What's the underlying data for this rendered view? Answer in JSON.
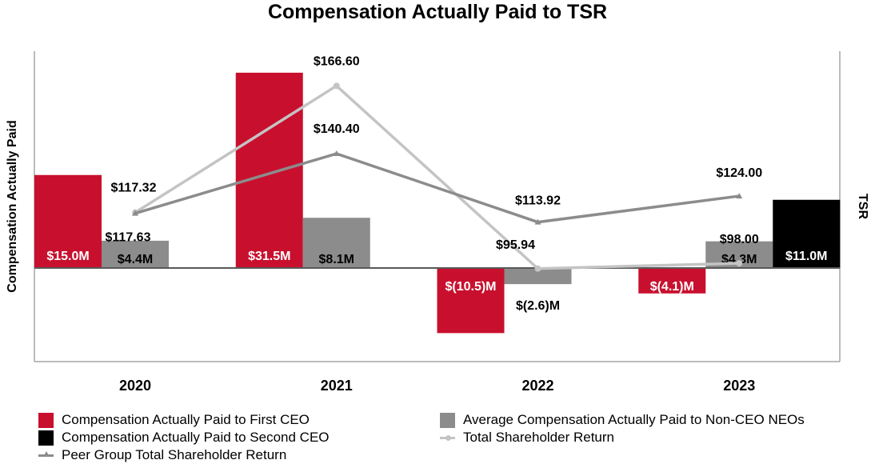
{
  "chart_data": {
    "type": "bar+line",
    "title": "Compensation Actually Paid to TSR",
    "ylabel_left": "Compensation Actually Paid",
    "ylabel_right": "TSR",
    "categories": [
      "2020",
      "2021",
      "2022",
      "2023"
    ],
    "bar_series": [
      {
        "name": "Compensation Actually Paid to First CEO",
        "color": "#c8102e",
        "values": [
          15.0,
          31.5,
          -10.5,
          -4.1
        ],
        "labels": [
          "$15.0M",
          "$31.5M",
          "$(10.5)M",
          "$(4.1)M"
        ]
      },
      {
        "name": "Average Compensation Actually Paid to Non-CEO NEOs",
        "color": "#8c8c8c",
        "values": [
          4.4,
          8.1,
          -2.6,
          4.3
        ],
        "labels": [
          "$4.4M",
          "$8.1M",
          "$(2.6)M",
          "$4.3M"
        ]
      },
      {
        "name": "Compensation Actually Paid to Second CEO",
        "color": "#000000",
        "values": [
          null,
          null,
          null,
          11.0
        ],
        "labels": [
          null,
          null,
          null,
          "$11.0M"
        ]
      }
    ],
    "line_series": [
      {
        "name": "Total Shareholder Return",
        "color": "#c4c4c4",
        "marker": "circle",
        "values": [
          117.63,
          166.6,
          95.94,
          98.0
        ],
        "labels": [
          "$117.63",
          "$166.60",
          "$95.94",
          "$98.00"
        ]
      },
      {
        "name": "Peer Group Total Shareholder Return",
        "color": "#8c8c8c",
        "marker": "triangle",
        "values": [
          117.32,
          140.4,
          113.92,
          124.0
        ],
        "labels": [
          "$117.32",
          "$140.40",
          "$113.92",
          "$124.00"
        ]
      }
    ],
    "bar_axis_range": [
      -15,
      35
    ],
    "line_axis_range": [
      60,
      180
    ],
    "grid": false
  },
  "legend": {
    "first_ceo": "Compensation Actually Paid to First CEO",
    "second_ceo": "Compensation Actually Paid to Second CEO",
    "peer_tsr": "Peer Group Total Shareholder Return",
    "neos": "Average Compensation Actually Paid to Non-CEO NEOs",
    "tsr": "Total Shareholder Return"
  },
  "colors": {
    "first_ceo": "#c8102e",
    "neos": "#8c8c8c",
    "second_ceo": "#000000",
    "tsr": "#c4c4c4",
    "peer_tsr": "#8c8c8c"
  }
}
